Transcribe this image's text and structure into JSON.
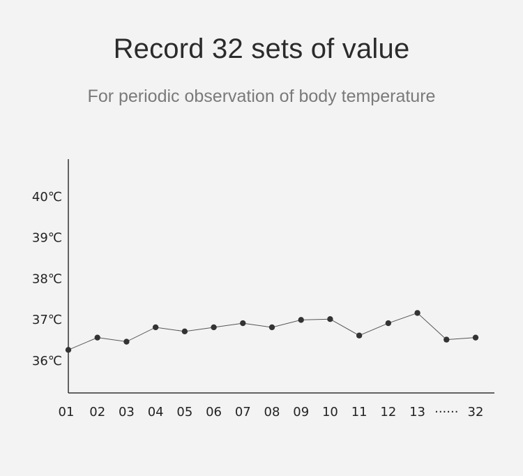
{
  "header": {
    "title": "Record 32 sets of value",
    "subtitle": "For periodic observation of body temperature"
  },
  "chart_data": {
    "type": "line",
    "title": "Record 32 sets of value",
    "subtitle": "For periodic observation of body temperature",
    "xlabel": "",
    "ylabel": "",
    "categories": [
      "01",
      "02",
      "03",
      "04",
      "05",
      "06",
      "07",
      "08",
      "09",
      "10",
      "11",
      "12",
      "13",
      "······",
      "32"
    ],
    "y_tick_labels": [
      "36℃",
      "37℃",
      "38℃",
      "39℃",
      "40℃"
    ],
    "y_ticks": [
      36,
      37,
      38,
      39,
      40
    ],
    "ylim": [
      35.2,
      40.9
    ],
    "series": [
      {
        "values": [
          36.25,
          36.55,
          36.45,
          36.8,
          36.7,
          36.8,
          36.9,
          36.8,
          36.98,
          37.0,
          36.6,
          36.9,
          37.15,
          36.5,
          36.55
        ]
      }
    ],
    "grid": "vertical lines at each category",
    "line_color": "#555555",
    "marker_color": "#333333",
    "axis_color": "#333333"
  }
}
